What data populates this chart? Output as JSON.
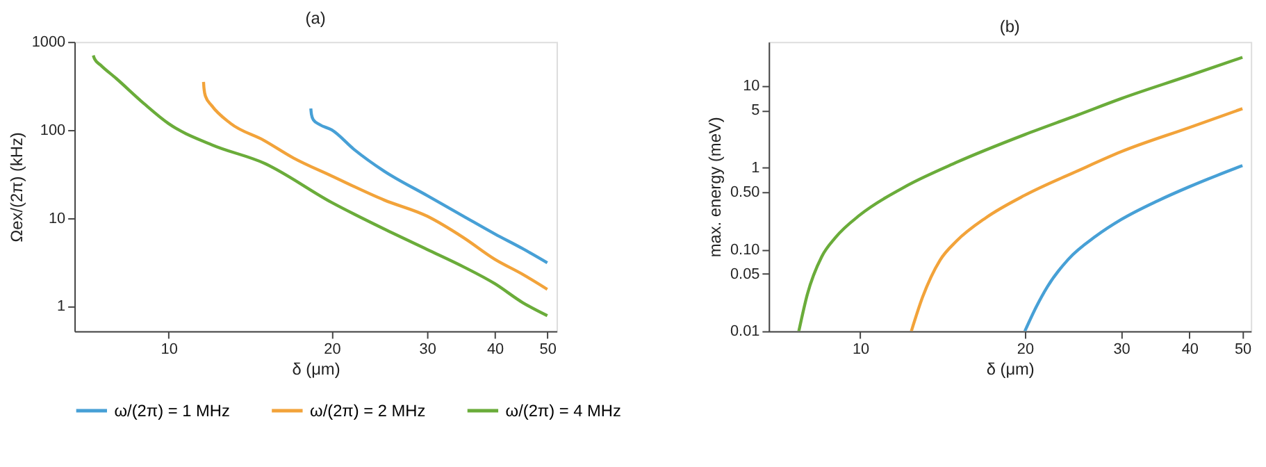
{
  "chart_data": [
    {
      "type": "line",
      "title": "(a)",
      "xlabel": "δ (μm)",
      "ylabel": "Ωex/(2π) (kHz)",
      "log": "xy",
      "legend": "bottom",
      "xlim": [
        6.7,
        52
      ],
      "ylim": [
        0.52,
        1000
      ],
      "xticks": [
        10,
        20,
        30,
        40,
        50
      ],
      "yticks": [
        1,
        10,
        100,
        1000
      ],
      "series": [
        {
          "name": "ω/(2π) = 1 MHz",
          "color": "#47a0d6",
          "x": [
            18.3,
            18.35,
            18.5,
            19,
            20,
            22,
            25,
            30,
            35,
            40,
            45,
            50
          ],
          "values": [
            175,
            150,
            130,
            115,
            100,
            60,
            34,
            18,
            10.5,
            6.6,
            4.5,
            3.1
          ]
        },
        {
          "name": "ω/(2π) = 2 MHz",
          "color": "#f2a33a",
          "x": [
            11.6,
            11.62,
            11.7,
            12,
            13,
            15,
            17,
            20,
            25,
            30,
            35,
            40,
            45,
            50
          ],
          "values": [
            350,
            300,
            240,
            190,
            119,
            76,
            48,
            30,
            16,
            10.5,
            6,
            3.4,
            2.3,
            1.55
          ]
        },
        {
          "name": "ω/(2π) = 4 MHz",
          "color": "#6aac3a",
          "x": [
            7.26,
            7.3,
            7.5,
            8,
            9,
            10,
            12,
            15,
            20,
            25,
            30,
            35,
            40,
            45,
            50
          ],
          "values": [
            700,
            640,
            540,
            385,
            200,
            118,
            68,
            42,
            15,
            7.5,
            4.4,
            2.8,
            1.8,
            1.1,
            0.78
          ]
        }
      ]
    },
    {
      "type": "line",
      "title": "(b)",
      "xlabel": "δ (μm)",
      "ylabel": "max. energy (meV)",
      "log": "xy",
      "xlim": [
        6.8,
        51.8
      ],
      "ylim": [
        0.01,
        34
      ],
      "xticks": [
        10,
        20,
        30,
        40,
        50
      ],
      "yticks": [
        0.01,
        0.05,
        {
          "value": 0.1,
          "label": "0.10"
        },
        {
          "value": 0.5,
          "label": "0.50"
        },
        1,
        5,
        10
      ],
      "series": [
        {
          "color": "#47a0d6",
          "x": [
            20,
            21,
            22,
            24,
            27,
            30,
            35,
            40,
            45,
            50
          ],
          "values": [
            0.01,
            0.02,
            0.035,
            0.075,
            0.145,
            0.23,
            0.39,
            0.58,
            0.8,
            1.05
          ]
        },
        {
          "color": "#f2a33a",
          "x": [
            12.4,
            13,
            14,
            15,
            17,
            20,
            25,
            30,
            40,
            50
          ],
          "values": [
            0.01,
            0.026,
            0.074,
            0.126,
            0.244,
            0.456,
            0.907,
            1.55,
            3.06,
            5.2
          ]
        },
        {
          "color": "#6aac3a",
          "x": [
            7.72,
            8,
            8.5,
            9,
            10,
            12,
            15,
            20,
            25,
            30,
            40,
            50
          ],
          "values": [
            0.01,
            0.028,
            0.081,
            0.138,
            0.264,
            0.567,
            1.15,
            2.51,
            4.36,
            6.9,
            13.2,
            22
          ]
        }
      ]
    }
  ]
}
